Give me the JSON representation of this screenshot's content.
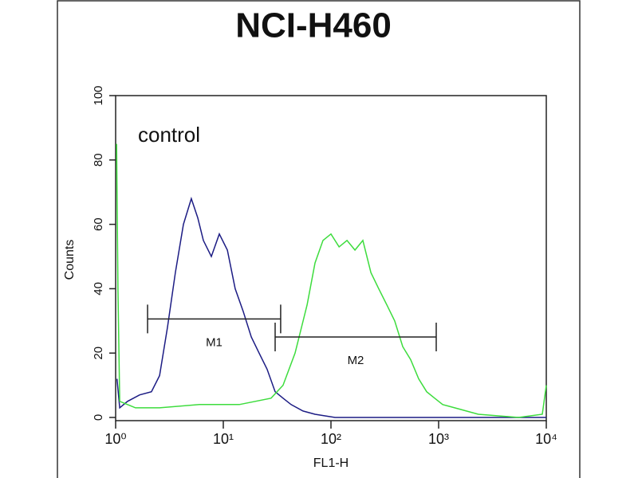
{
  "chart_data": {
    "type": "histogram-line",
    "title": "NCI-H460",
    "annotation": "control",
    "xlabel": "FL1-H",
    "ylabel": "Counts",
    "xscale": "log",
    "xlim": [
      1,
      10000
    ],
    "xticks": [
      {
        "value": 1,
        "label": "10⁰"
      },
      {
        "value": 10,
        "label": "10¹"
      },
      {
        "value": 100,
        "label": "10²"
      },
      {
        "value": 1000,
        "label": "10³"
      },
      {
        "value": 10000,
        "label": "10⁴"
      }
    ],
    "ylim": [
      0,
      100
    ],
    "yticks": [
      0,
      20,
      40,
      60,
      80,
      100
    ],
    "series": [
      {
        "color": "#1c1c84",
        "x": [
          1.03,
          1.09,
          1.29,
          1.67,
          2.15,
          2.56,
          3.03,
          3.59,
          4.26,
          5.05,
          5.79,
          6.53,
          7.74,
          9.18,
          10.9,
          12.9,
          15.3,
          18.2,
          21.5,
          25.5,
          30.3,
          35.9,
          42.6,
          55.0,
          71.1,
          109,
          426,
          2340,
          10000
        ],
        "values": [
          12,
          3,
          5,
          7,
          8,
          13,
          28,
          45,
          60,
          68,
          62,
          55,
          50,
          57,
          52,
          40,
          33,
          25,
          20,
          15,
          8,
          6,
          4,
          2,
          1,
          0,
          0,
          0,
          0
        ]
      },
      {
        "color": "#3ddc3d",
        "x": [
          1.02,
          1.05,
          1.09,
          1.53,
          2.56,
          6.0,
          14.1,
          27.8,
          35.9,
          46.4,
          60.0,
          71.1,
          84.3,
          100,
          119,
          141,
          167,
          198,
          235,
          278,
          330,
          391,
          464,
          550,
          653,
          774,
          918,
          1090,
          1410,
          2340,
          5510,
          9180,
          10000
        ],
        "values": [
          85,
          40,
          5,
          3,
          3,
          4,
          4,
          6,
          10,
          20,
          35,
          48,
          55,
          57,
          53,
          55,
          52,
          55,
          45,
          40,
          35,
          30,
          22,
          18,
          12,
          8,
          6,
          4,
          3,
          1,
          0,
          1,
          10
        ]
      }
    ],
    "markers": [
      {
        "label": "M1",
        "start": 1.98,
        "end": 34.1,
        "level": 30.6
      },
      {
        "label": "M2",
        "start": 30.3,
        "end": 950,
        "level": 25
      }
    ]
  }
}
